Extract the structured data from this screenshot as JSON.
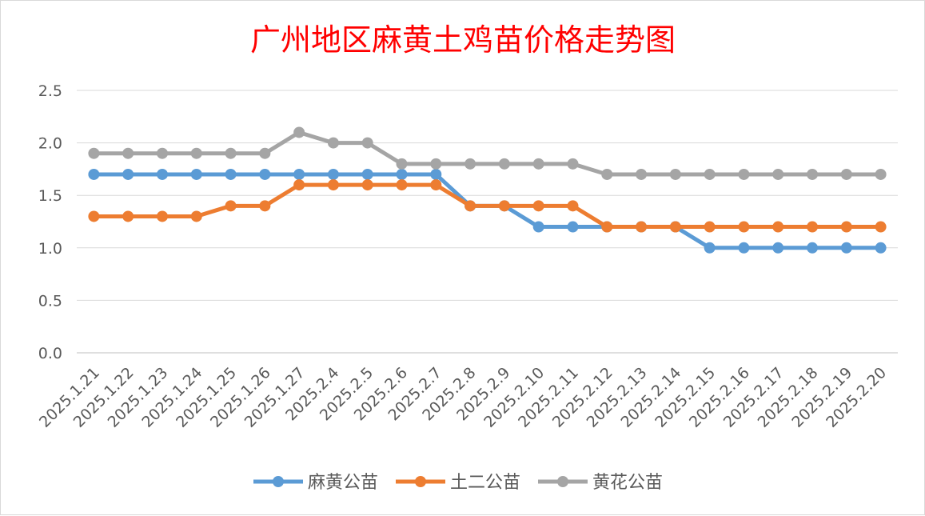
{
  "chart_data": {
    "type": "line",
    "title": "广州地区麻黄土鸡苗价格走势图",
    "xlabel": "",
    "ylabel": "",
    "categories": [
      "2025.1.21",
      "2025.1.22",
      "2025.1.23",
      "2025.1.24",
      "2025.1.25",
      "2025.1.26",
      "2025.1.27",
      "2025.2.4",
      "2025.2.5",
      "2025.2.6",
      "2025.2.7",
      "2025.2.8",
      "2025.2.9",
      "2025.2.10",
      "2025.2.11",
      "2025.2.12",
      "2025.2.13",
      "2025.2.14",
      "2025.2.15",
      "2025.2.16",
      "2025.2.17",
      "2025.2.18",
      "2025.2.19",
      "2025.2.20"
    ],
    "ylim": [
      0,
      2.5
    ],
    "yticks": [
      "0.0",
      "0.5",
      "1.0",
      "1.5",
      "2.0",
      "2.5"
    ],
    "grid": true,
    "legend_position": "bottom",
    "series": [
      {
        "name": "麻黄公苗",
        "color": "#5b9bd5",
        "values": [
          1.7,
          1.7,
          1.7,
          1.7,
          1.7,
          1.7,
          1.7,
          1.7,
          1.7,
          1.7,
          1.7,
          1.4,
          1.4,
          1.2,
          1.2,
          1.2,
          1.2,
          1.2,
          1.0,
          1.0,
          1.0,
          1.0,
          1.0,
          1.0
        ]
      },
      {
        "name": "土二公苗",
        "color": "#ed7d31",
        "values": [
          1.3,
          1.3,
          1.3,
          1.3,
          1.4,
          1.4,
          1.6,
          1.6,
          1.6,
          1.6,
          1.6,
          1.4,
          1.4,
          1.4,
          1.4,
          1.2,
          1.2,
          1.2,
          1.2,
          1.2,
          1.2,
          1.2,
          1.2,
          1.2
        ]
      },
      {
        "name": "黄花公苗",
        "color": "#a5a5a5",
        "values": [
          1.9,
          1.9,
          1.9,
          1.9,
          1.9,
          1.9,
          2.1,
          2.0,
          2.0,
          1.8,
          1.8,
          1.8,
          1.8,
          1.8,
          1.8,
          1.7,
          1.7,
          1.7,
          1.7,
          1.7,
          1.7,
          1.7,
          1.7,
          1.7
        ]
      }
    ],
    "title_color": "#ff0000"
  }
}
